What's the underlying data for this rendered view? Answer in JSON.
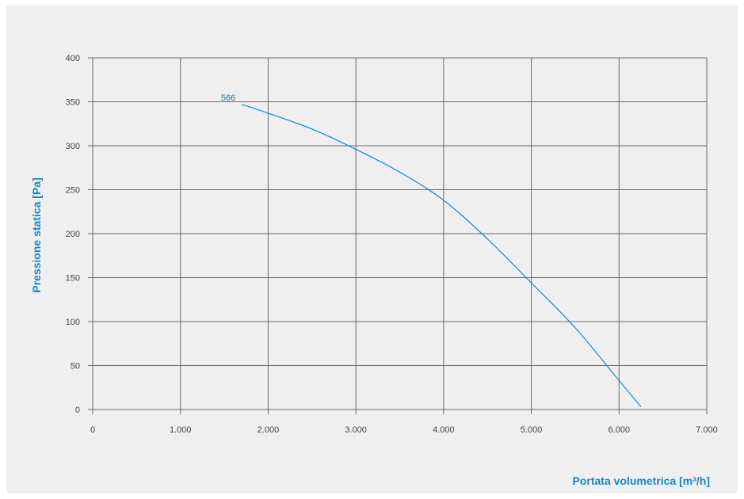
{
  "chart_data": {
    "type": "line",
    "xlabel": "Portata volumetrica [m³/h]",
    "ylabel": "Pressione statica [Pa]",
    "xlim": [
      0,
      7000
    ],
    "ylim": [
      0,
      400
    ],
    "x_ticks": [
      0,
      1000,
      2000,
      3000,
      4000,
      5000,
      6000,
      7000
    ],
    "x_tick_labels": [
      "0",
      "1.000",
      "2.000",
      "3.000",
      "4.000",
      "5.000",
      "6.000",
      "7.000"
    ],
    "y_ticks": [
      0,
      50,
      100,
      150,
      200,
      250,
      300,
      350,
      400
    ],
    "y_tick_labels": [
      "0",
      "50",
      "100",
      "150",
      "200",
      "250",
      "300",
      "350",
      "400"
    ],
    "grid": true,
    "line_color": "#1a86c6",
    "series": [
      {
        "name": "566",
        "x": [
          1700,
          2000,
          2500,
          3000,
          3500,
          4000,
          4500,
          5000,
          5500,
          6000,
          6250
        ],
        "y": [
          347,
          337,
          319,
          296,
          270,
          238,
          194,
          144,
          93,
          33,
          3
        ]
      }
    ]
  }
}
